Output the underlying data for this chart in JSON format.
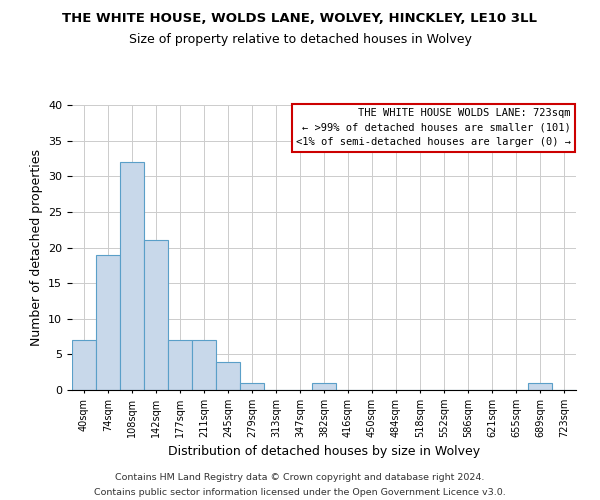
{
  "title": "THE WHITE HOUSE, WOLDS LANE, WOLVEY, HINCKLEY, LE10 3LL",
  "subtitle": "Size of property relative to detached houses in Wolvey",
  "xlabel": "Distribution of detached houses by size in Wolvey",
  "ylabel": "Number of detached properties",
  "bar_color": "#c8d8ea",
  "bar_edge_color": "#5a9fc8",
  "bins": [
    "40sqm",
    "74sqm",
    "108sqm",
    "142sqm",
    "177sqm",
    "211sqm",
    "245sqm",
    "279sqm",
    "313sqm",
    "347sqm",
    "382sqm",
    "416sqm",
    "450sqm",
    "484sqm",
    "518sqm",
    "552sqm",
    "586sqm",
    "621sqm",
    "655sqm",
    "689sqm",
    "723sqm"
  ],
  "values": [
    7,
    19,
    32,
    21,
    7,
    7,
    4,
    1,
    0,
    0,
    1,
    0,
    0,
    0,
    0,
    0,
    0,
    0,
    0,
    1,
    0
  ],
  "ylim": [
    0,
    40
  ],
  "yticks": [
    0,
    5,
    10,
    15,
    20,
    25,
    30,
    35,
    40
  ],
  "legend_title": "THE WHITE HOUSE WOLDS LANE: 723sqm",
  "legend_line1": "← >99% of detached houses are smaller (101)",
  "legend_line2": "<1% of semi-detached houses are larger (0) →",
  "legend_box_color": "#ffffff",
  "legend_border_color": "#cc0000",
  "footer1": "Contains HM Land Registry data © Crown copyright and database right 2024.",
  "footer2": "Contains public sector information licensed under the Open Government Licence v3.0.",
  "background_color": "#ffffff",
  "grid_color": "#cccccc"
}
